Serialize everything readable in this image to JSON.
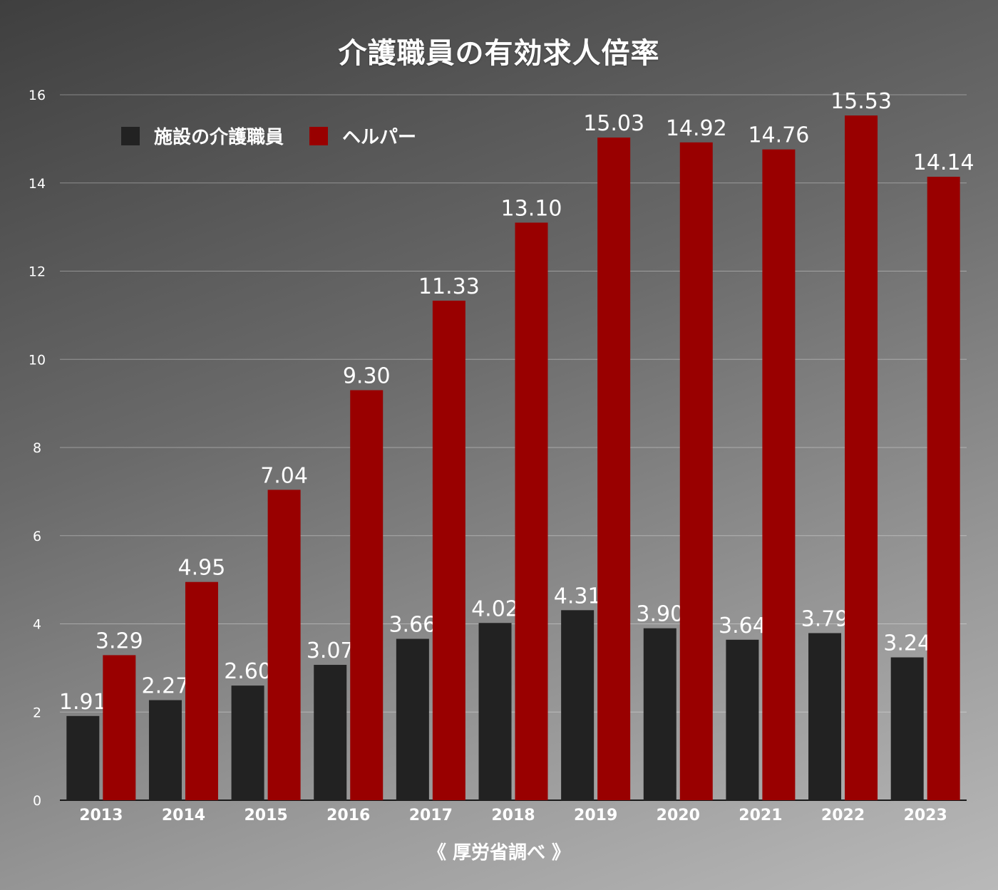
{
  "chart_data": {
    "type": "bar",
    "title": "介護職員の有効求人倍率",
    "source": "《 厚労省調べ 》",
    "categories": [
      "2013",
      "2014",
      "2015",
      "2016",
      "2017",
      "2018",
      "2019",
      "2020",
      "2021",
      "2022",
      "2023"
    ],
    "series": [
      {
        "name": "施設の介護職員",
        "color": "#222222",
        "values": [
          1.91,
          2.27,
          2.6,
          3.07,
          3.66,
          4.02,
          4.31,
          3.9,
          3.64,
          3.79,
          3.24
        ],
        "labels": [
          "1.91",
          "2.27",
          "2.60",
          "3.07",
          "3.66",
          "4.02",
          "4.31",
          "3.90",
          "3.64",
          "3.79",
          "3.24"
        ]
      },
      {
        "name": "ヘルパー",
        "color": "#990000",
        "values": [
          3.29,
          4.95,
          7.04,
          9.3,
          11.33,
          13.1,
          15.03,
          14.92,
          14.76,
          15.53,
          14.14
        ],
        "labels": [
          "3.29",
          "4.95",
          "7.04",
          "9.30",
          "11.33",
          "13.10",
          "15.03",
          "14.92",
          "14.76",
          "15.53",
          "14.14"
        ]
      }
    ],
    "ylim": [
      0,
      16
    ],
    "yticks": [
      "0",
      "2",
      "4",
      "6",
      "8",
      "10",
      "12",
      "14",
      "16"
    ],
    "grid": true,
    "legend_position": "top-left",
    "xlabel": "",
    "ylabel": ""
  }
}
